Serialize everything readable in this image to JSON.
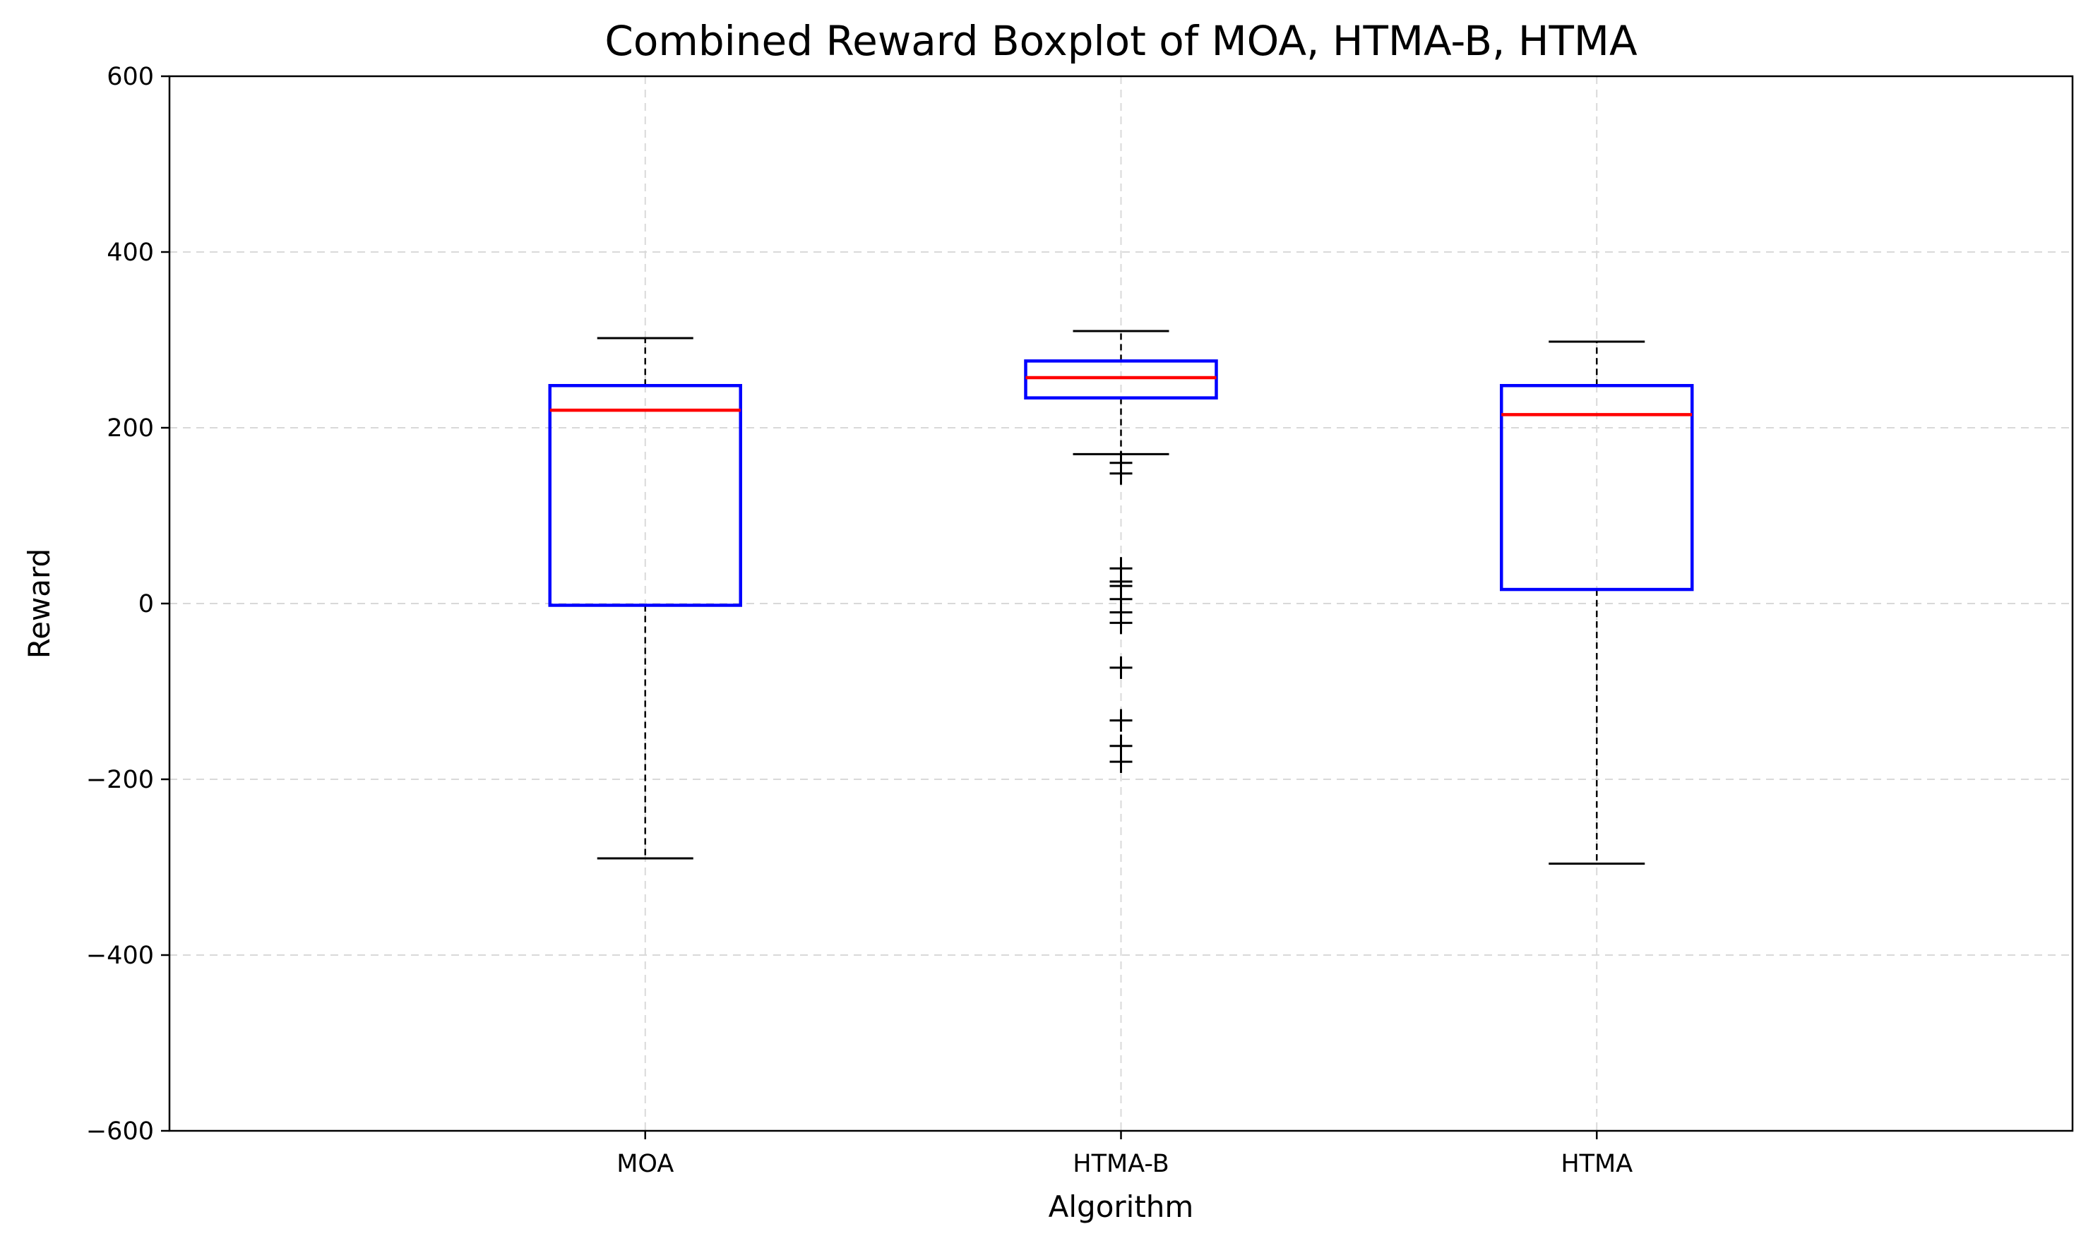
{
  "chart_data": {
    "type": "boxplot",
    "title": "Combined Reward Boxplot of MOA, HTMA-B, HTMA",
    "xlabel": "Algorithm",
    "ylabel": "Reward",
    "ylim": [
      -600,
      600
    ],
    "yticks": [
      -600,
      -400,
      -200,
      0,
      200,
      400,
      600
    ],
    "ytick_labels": [
      "−600",
      "−400",
      "−200",
      "0",
      "200",
      "400",
      "600"
    ],
    "categories": [
      "MOA",
      "HTMA-B",
      "HTMA"
    ],
    "grid": true,
    "colors": {
      "box": "#0000ff",
      "median": "#ff0000",
      "whisker": "#000000",
      "grid": "#d9d9d9"
    },
    "boxes": [
      {
        "category": "MOA",
        "whisker_low": -290,
        "q1": -2,
        "median": 220,
        "q3": 248,
        "whisker_high": 302,
        "outliers": []
      },
      {
        "category": "HTMA-B",
        "whisker_low": 170,
        "q1": 234,
        "median": 257,
        "q3": 276,
        "whisker_high": 310,
        "outliers": [
          160,
          148,
          40,
          25,
          20,
          5,
          -10,
          -22,
          -73,
          -133,
          -162,
          -180
        ]
      },
      {
        "category": "HTMA",
        "whisker_low": -296,
        "q1": 16,
        "median": 215,
        "q3": 248,
        "whisker_high": 298,
        "outliers": []
      }
    ]
  }
}
